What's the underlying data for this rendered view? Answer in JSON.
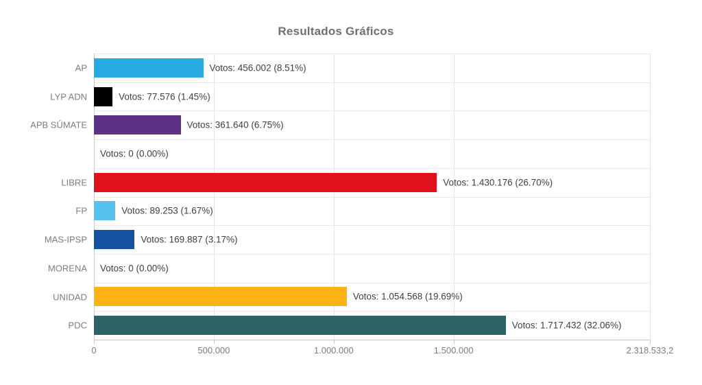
{
  "title": "Resultados Gráficos",
  "colors": {
    "background": "#ffffff",
    "title_text": "#707070",
    "axis_label_text": "#7d7d7d",
    "annotation_text": "#3f3f3f",
    "gridline": "#e8e8e8",
    "axis_line": "#c9c9c9"
  },
  "chart_data": {
    "type": "bar",
    "orientation": "horizontal",
    "title": "Resultados Gráficos",
    "legend": "none",
    "grid": true,
    "categories": [
      "AP",
      "LYP ADN",
      "APB SÚMATE",
      "",
      "LIBRE",
      "FP",
      "MAS-IPSP",
      "MORENA",
      "UNIDAD",
      "PDC"
    ],
    "values": [
      456002,
      77576,
      361640,
      0,
      1430176,
      89253,
      169887,
      0,
      1054568,
      1717432
    ],
    "percentages": [
      8.51,
      1.45,
      6.75,
      0.0,
      26.7,
      1.67,
      3.17,
      0.0,
      19.69,
      32.06
    ],
    "annotations": [
      "Votos: 456.002 (8.51%)",
      "Votos: 77.576 (1.45%)",
      "Votos: 361.640 (6.75%)",
      "Votos: 0 (0.00%)",
      "Votos: 1.430.176 (26.70%)",
      "Votos: 89.253 (1.67%)",
      "Votos: 169.887 (3.17%)",
      "Votos: 0 (0.00%)",
      "Votos: 1.054.568 (19.69%)",
      "Votos: 1.717.432 (32.06%)"
    ],
    "bar_colors": [
      "#29A9E1",
      "#000000",
      "#5E3189",
      null,
      "#E1111B",
      "#57C1ED",
      "#1553A2",
      null,
      "#FCB415",
      "#2D6366"
    ],
    "xlabel": "",
    "ylabel": "",
    "xlim": [
      0,
      2318533.2
    ],
    "x_ticks": [
      {
        "value": 0,
        "label": "0"
      },
      {
        "value": 500000,
        "label": "500.000"
      },
      {
        "value": 1000000,
        "label": "1.000.000"
      },
      {
        "value": 1500000,
        "label": "1.500.000"
      },
      {
        "value": 2318533.2,
        "label": "2.318.533,2"
      }
    ]
  }
}
